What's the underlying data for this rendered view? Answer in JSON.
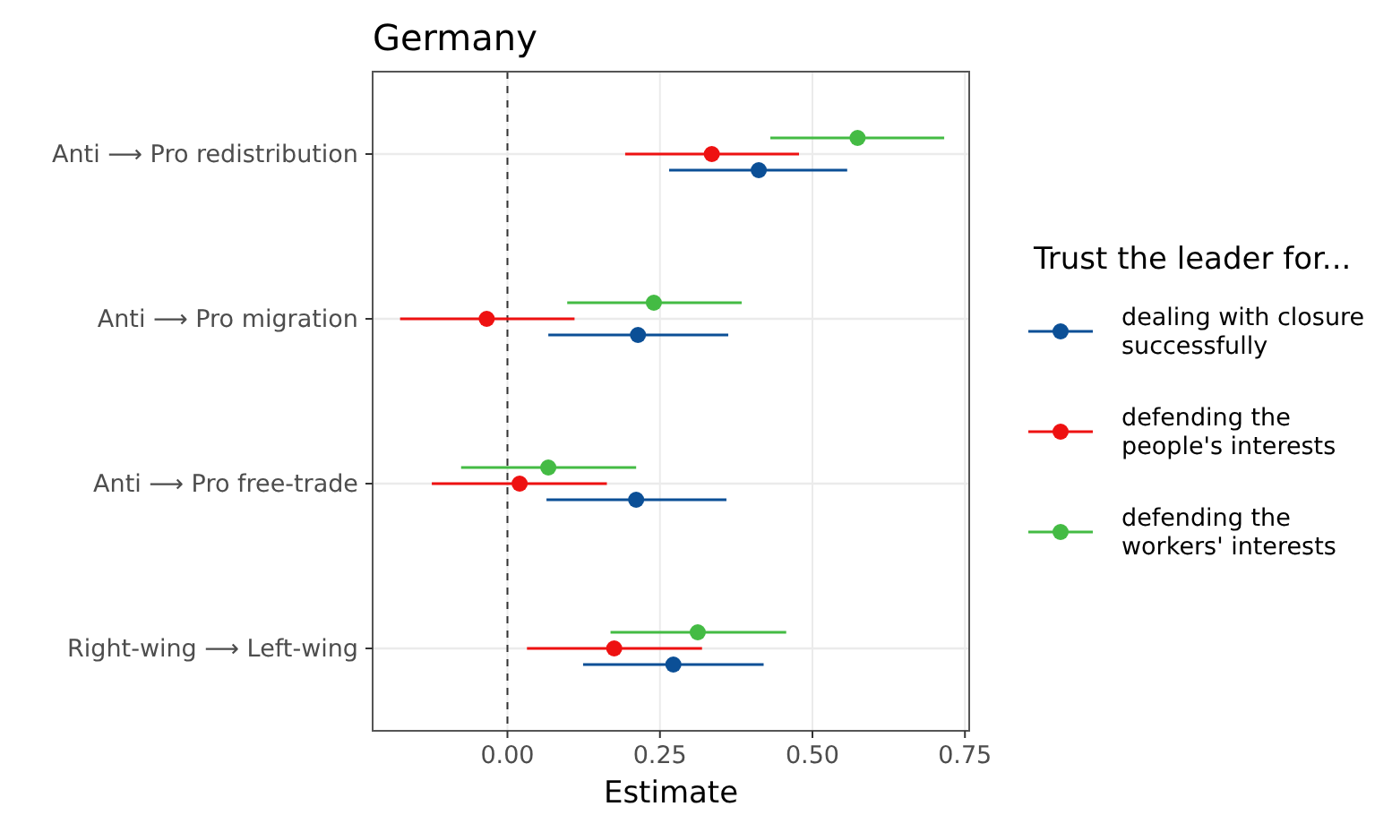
{
  "chart_data": {
    "type": "scatter",
    "orientation": "horizontal",
    "title": "Germany",
    "xlabel": "Estimate",
    "legend_title": "Trust the leader for...",
    "legend": "right",
    "grid": true,
    "marker": "circle",
    "categories": [
      "Anti ⟶ Pro redistribution",
      "Anti ⟶ Pro migration",
      "Anti ⟶ Pro free-trade",
      "Right-wing ⟶ Left-wing"
    ],
    "xlim": [
      -0.221,
      0.757
    ],
    "xticks": [
      {
        "value": 0,
        "label": "0.00"
      },
      {
        "value": 0.25,
        "label": "0.25"
      },
      {
        "value": 0.5,
        "label": "0.50"
      },
      {
        "value": 0.75,
        "label": "0.75"
      }
    ],
    "ref_lines": [
      {
        "axis": "x",
        "value": 0,
        "line_style": "dashed",
        "color": "#333333"
      }
    ],
    "series": [
      {
        "name": "dealing with closure successfully",
        "color": "#0b4f96",
        "values": [
          0.412,
          0.214,
          0.211,
          0.272
        ],
        "errors": [
          [
            0.265,
            0.557
          ],
          [
            0.067,
            0.362
          ],
          [
            0.064,
            0.359
          ],
          [
            0.124,
            0.42
          ]
        ]
      },
      {
        "name": "defending the people's interests",
        "color": "#ee1111",
        "values": [
          0.335,
          -0.034,
          0.02,
          0.175
        ],
        "errors": [
          [
            0.193,
            0.478
          ],
          [
            -0.176,
            0.11
          ],
          [
            -0.124,
            0.163
          ],
          [
            0.032,
            0.319
          ]
        ]
      },
      {
        "name": "defending the workers' interests",
        "color": "#44bb44",
        "values": [
          0.574,
          0.24,
          0.067,
          0.312
        ],
        "errors": [
          [
            0.431,
            0.716
          ],
          [
            0.098,
            0.384
          ],
          [
            -0.076,
            0.211
          ],
          [
            0.169,
            0.457
          ]
        ]
      }
    ]
  }
}
